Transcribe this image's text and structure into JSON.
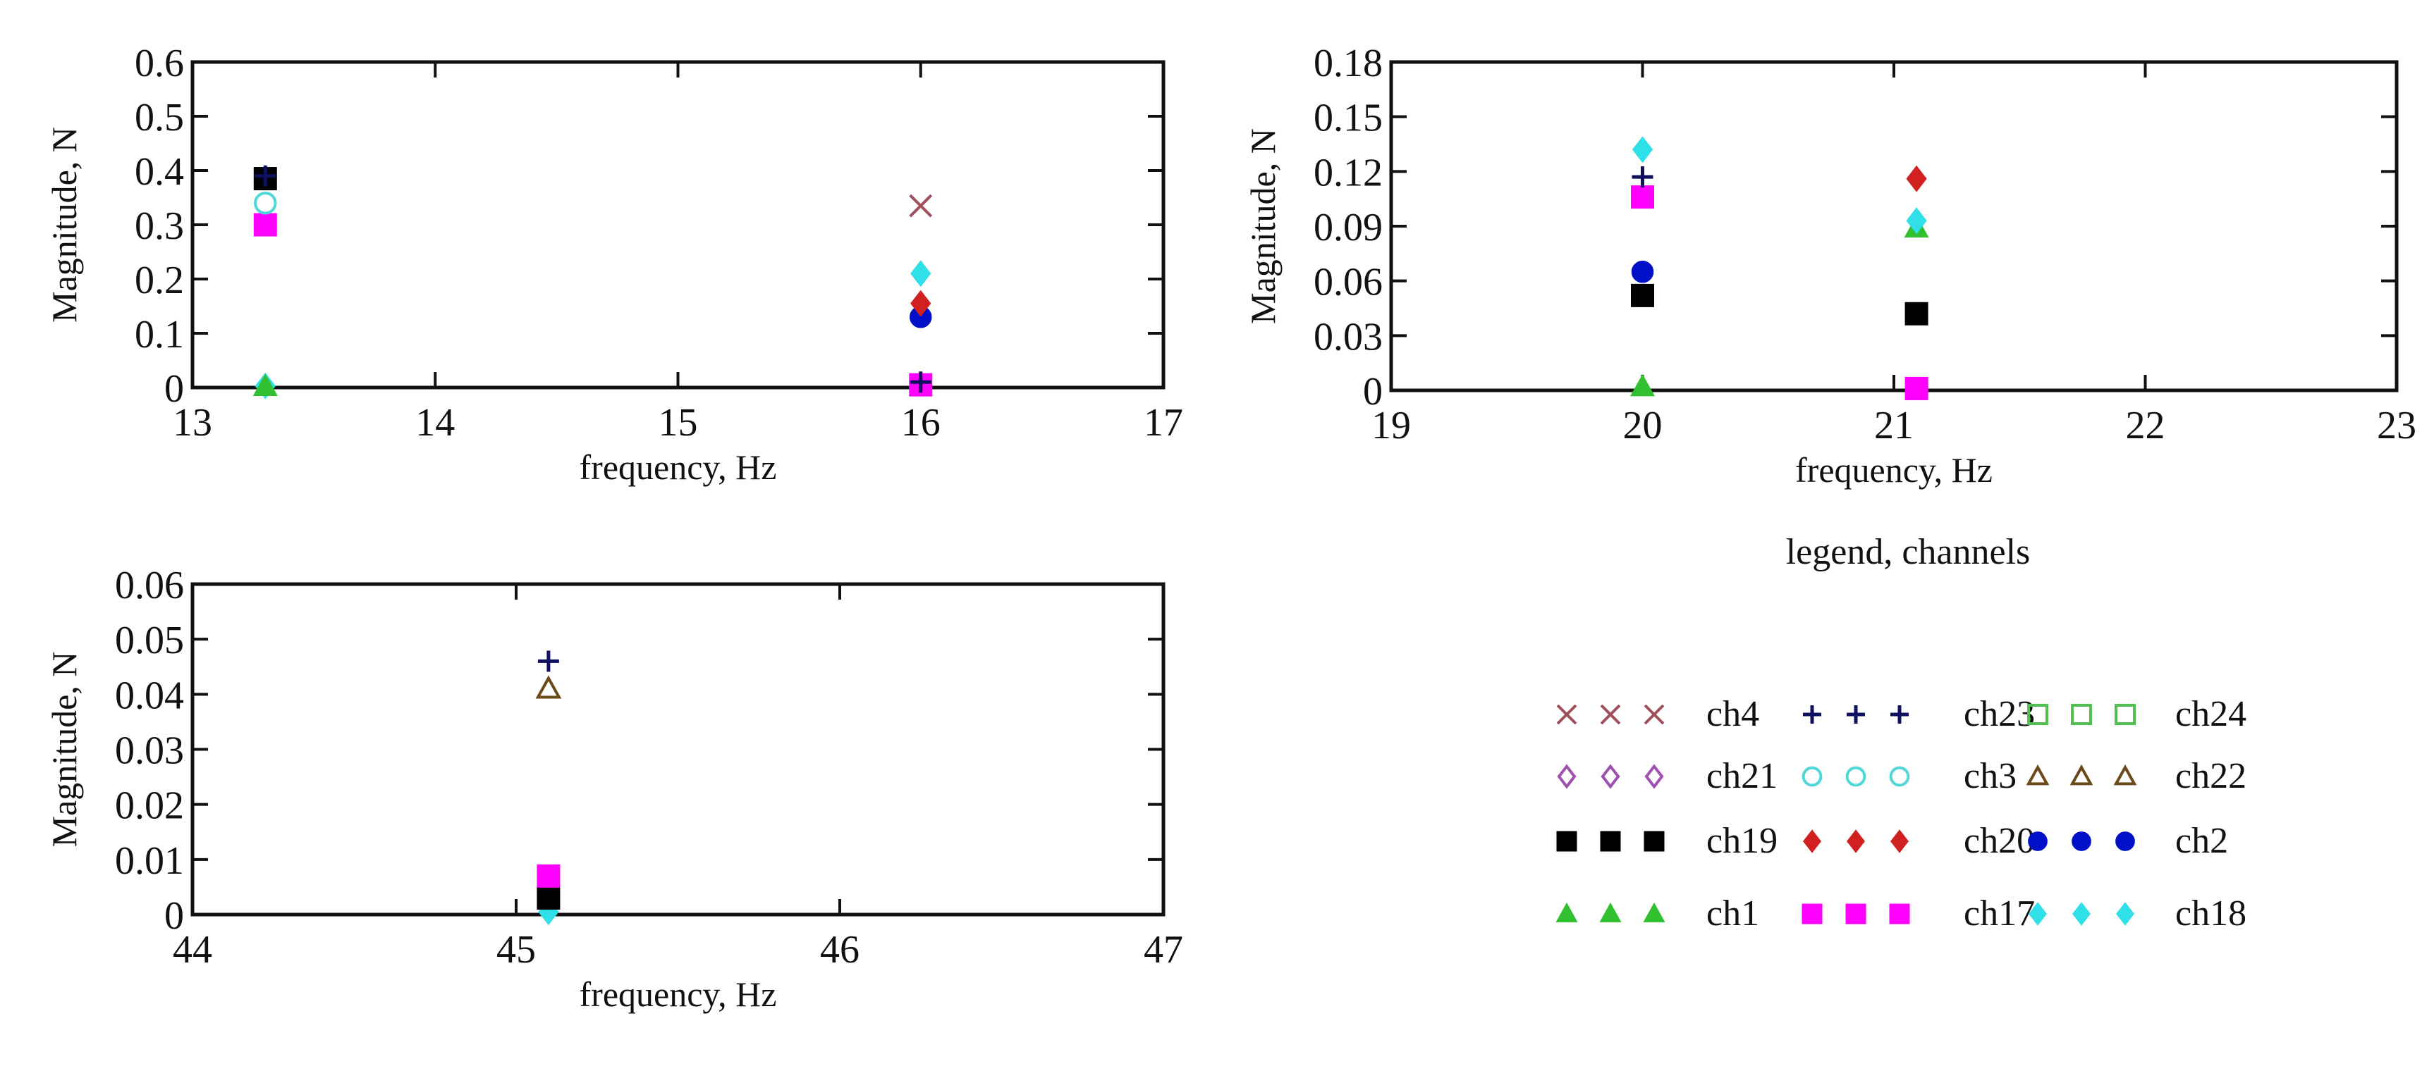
{
  "colors": {
    "ch4": "#a0505a",
    "ch23": "#101060",
    "ch24": "#50c050",
    "ch21": "#a050b0",
    "ch3": "#50d8d8",
    "ch22": "#6b4a1a",
    "ch19": "#000000",
    "ch20": "#d02020",
    "ch2": "#0010c8",
    "ch1": "#30c030",
    "ch17": "#ff00ff",
    "ch18": "#30e0e8"
  },
  "markers": {
    "ch4": "x",
    "ch23": "plus",
    "ch24": "square-open",
    "ch21": "diamond-open",
    "ch3": "circle-open",
    "ch22": "triangle-open",
    "ch19": "square",
    "ch20": "diamond",
    "ch2": "circle",
    "ch1": "triangle",
    "ch17": "square",
    "ch18": "diamond"
  },
  "legend": {
    "title": "legend, channels",
    "rows": [
      [
        "ch4",
        "ch23",
        "ch24"
      ],
      [
        "ch21",
        "ch3",
        "ch22"
      ],
      [
        "ch19",
        "ch20",
        "ch2"
      ],
      [
        "ch1",
        "ch17",
        "ch18"
      ]
    ]
  },
  "chart_data": [
    {
      "type": "scatter",
      "xlabel": "frequency, Hz",
      "ylabel": "Magnitude, N",
      "xlim": [
        13,
        17
      ],
      "ylim": [
        0,
        0.6
      ],
      "xticks": [
        "13",
        "14",
        "15",
        "16",
        "17"
      ],
      "yticks": [
        "0",
        "0.1",
        "0.2",
        "0.3",
        "0.4",
        "0.5",
        "0.6"
      ],
      "grid": false,
      "series": [
        {
          "name": "ch23",
          "points": [
            [
              13.3,
              0.39
            ],
            [
              16.0,
              0.01
            ]
          ]
        },
        {
          "name": "ch19",
          "points": [
            [
              13.3,
              0.385
            ]
          ]
        },
        {
          "name": "ch3",
          "points": [
            [
              13.3,
              0.34
            ]
          ]
        },
        {
          "name": "ch17",
          "points": [
            [
              13.3,
              0.3
            ],
            [
              16.0,
              0.005
            ]
          ]
        },
        {
          "name": "ch1",
          "points": [
            [
              13.3,
              0.002
            ]
          ]
        },
        {
          "name": "ch18",
          "points": [
            [
              13.3,
              0.003
            ],
            [
              16.0,
              0.21
            ]
          ]
        },
        {
          "name": "ch4",
          "points": [
            [
              16.0,
              0.335
            ]
          ]
        },
        {
          "name": "ch20",
          "points": [
            [
              16.0,
              0.155
            ]
          ]
        },
        {
          "name": "ch2",
          "points": [
            [
              16.0,
              0.13
            ]
          ]
        }
      ]
    },
    {
      "type": "scatter",
      "xlabel": "frequency, Hz",
      "ylabel": "Magnitude, N",
      "xlim": [
        19,
        23
      ],
      "ylim": [
        0,
        0.18
      ],
      "xticks": [
        "19",
        "20",
        "21",
        "22",
        "23"
      ],
      "yticks": [
        "0",
        "0.03",
        "0.06",
        "0.09",
        "0.12",
        "0.15",
        "0.18"
      ],
      "grid": false,
      "series": [
        {
          "name": "ch18",
          "points": [
            [
              20.0,
              0.132
            ],
            [
              21.09,
              0.093
            ]
          ]
        },
        {
          "name": "ch23",
          "points": [
            [
              20.0,
              0.117
            ]
          ]
        },
        {
          "name": "ch17",
          "points": [
            [
              20.0,
              0.106
            ],
            [
              21.09,
              0.001
            ]
          ]
        },
        {
          "name": "ch2",
          "points": [
            [
              20.0,
              0.065
            ]
          ]
        },
        {
          "name": "ch19",
          "points": [
            [
              20.0,
              0.052
            ],
            [
              21.09,
              0.042
            ]
          ]
        },
        {
          "name": "ch1",
          "points": [
            [
              20.0,
              0.002
            ],
            [
              21.09,
              0.089
            ]
          ]
        },
        {
          "name": "ch20",
          "points": [
            [
              21.09,
              0.116
            ]
          ]
        }
      ]
    },
    {
      "type": "scatter",
      "xlabel": "frequency, Hz",
      "ylabel": "Magnitude, N",
      "xlim": [
        44,
        47
      ],
      "ylim": [
        0,
        0.06
      ],
      "xticks": [
        "44",
        "45",
        "46",
        "47"
      ],
      "yticks": [
        "0",
        "0.01",
        "0.02",
        "0.03",
        "0.04",
        "0.05",
        "0.06"
      ],
      "grid": false,
      "series": [
        {
          "name": "ch23",
          "points": [
            [
              45.1,
              0.046
            ]
          ]
        },
        {
          "name": "ch22",
          "points": [
            [
              45.1,
              0.041
            ]
          ]
        },
        {
          "name": "ch17",
          "points": [
            [
              45.1,
              0.007
            ]
          ]
        },
        {
          "name": "ch19",
          "points": [
            [
              45.1,
              0.003
            ]
          ]
        },
        {
          "name": "ch18",
          "points": [
            [
              45.1,
              0.0005
            ]
          ]
        }
      ]
    }
  ]
}
